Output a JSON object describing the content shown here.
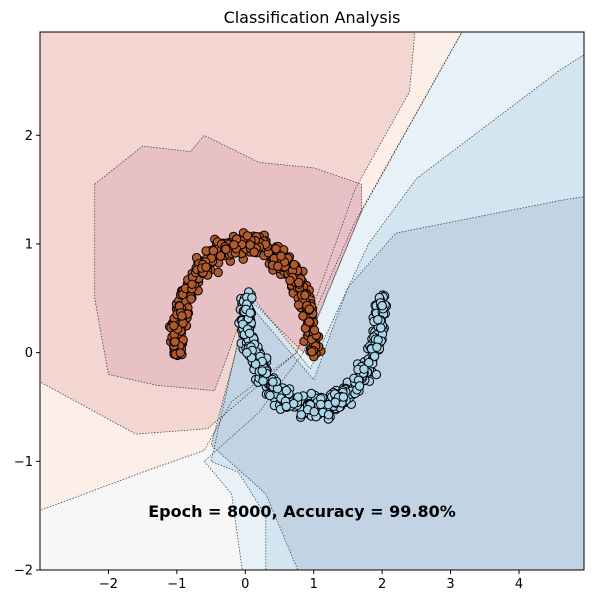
{
  "chart_data": {
    "type": "scatter",
    "title": "Classification Analysis",
    "xlabel": "",
    "ylabel": "",
    "xlim": [
      -3.0,
      4.95
    ],
    "ylim": [
      -2.0,
      2.95
    ],
    "xticks": [
      -2,
      -1,
      0,
      1,
      2,
      3,
      4
    ],
    "yticks": [
      -2,
      -1,
      0,
      1,
      2
    ],
    "grid": false,
    "annotation": "Epoch = 8000, Accuracy = 99.80%",
    "background": "decision-boundary contour (RdBu, translucent)",
    "series": [
      {
        "class": 0,
        "color": "#b35a2c",
        "shape": "upper half-moon",
        "center": [
          0,
          0
        ],
        "radius": 1.0,
        "angle_range_deg": [
          0,
          180
        ],
        "noise": 0.05,
        "count": 500
      },
      {
        "class": 1,
        "color": "#a9d3e8",
        "shape": "lower half-moon",
        "center": [
          1,
          0.5
        ],
        "radius": 1.0,
        "angle_range_deg": [
          180,
          360
        ],
        "noise": 0.05,
        "count": 500
      }
    ],
    "regions": {
      "colors": {
        "class0_strong": "#e7c1c6",
        "class0_mid": "#f3d6d1",
        "class0_light": "#fcefe8",
        "neutral": "#f7f7f7",
        "class1_light": "#e9f1f8",
        "class1_mid": "#d3e5f1",
        "class1_strong": "#c2d4e4"
      }
    }
  }
}
